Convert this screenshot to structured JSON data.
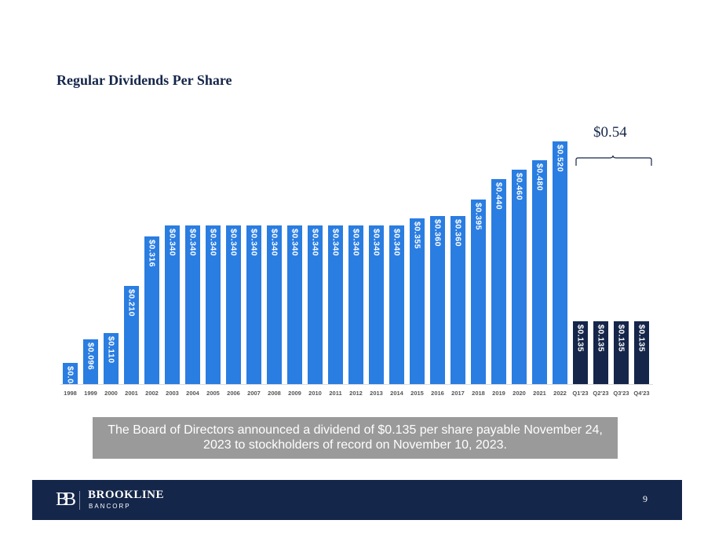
{
  "title": "Regular Dividends Per Share",
  "chart_data": {
    "type": "bar",
    "title": "Regular Dividends Per Share",
    "categories": [
      "1998",
      "1999",
      "2000",
      "2001",
      "2002",
      "2003",
      "2004",
      "2005",
      "2006",
      "2007",
      "2008",
      "2009",
      "2010",
      "2011",
      "2012",
      "2013",
      "2014",
      "2015",
      "2016",
      "2017",
      "2018",
      "2019",
      "2020",
      "2021",
      "2022",
      "Q1'23",
      "Q2'23",
      "Q3'23",
      "Q4'23"
    ],
    "values": [
      0.046,
      0.096,
      0.11,
      0.21,
      0.316,
      0.34,
      0.34,
      0.34,
      0.34,
      0.34,
      0.34,
      0.34,
      0.34,
      0.34,
      0.34,
      0.34,
      0.34,
      0.355,
      0.36,
      0.36,
      0.395,
      0.44,
      0.46,
      0.48,
      0.52,
      0.135,
      0.135,
      0.135,
      0.135
    ],
    "labels": [
      "$0.046",
      "$0.096",
      "$0.110",
      "$0.210",
      "$0.316",
      "$0.340",
      "$0.340",
      "$0.340",
      "$0.340",
      "$0.340",
      "$0.340",
      "$0.340",
      "$0.340",
      "$0.340",
      "$0.340",
      "$0.340",
      "$0.340",
      "$0.355",
      "$0.360",
      "$0.360",
      "$0.395",
      "$0.440",
      "$0.460",
      "$0.480",
      "$0.520",
      "$0.135",
      "$0.135",
      "$0.135",
      "$0.135"
    ],
    "ylim": [
      0,
      0.52
    ],
    "colors": {
      "annual": "#2a7de1",
      "quarterly": "#15264a"
    },
    "annotation": "$0.54"
  },
  "note": "The Board of Directors announced a dividend of $0.135 per share payable November 24, 2023 to stockholders of record on November 10, 2023.",
  "footer": {
    "brand": "BROOKLINE",
    "brand_sub": "BANCORP",
    "logo_mark": "BB",
    "page": "9"
  }
}
